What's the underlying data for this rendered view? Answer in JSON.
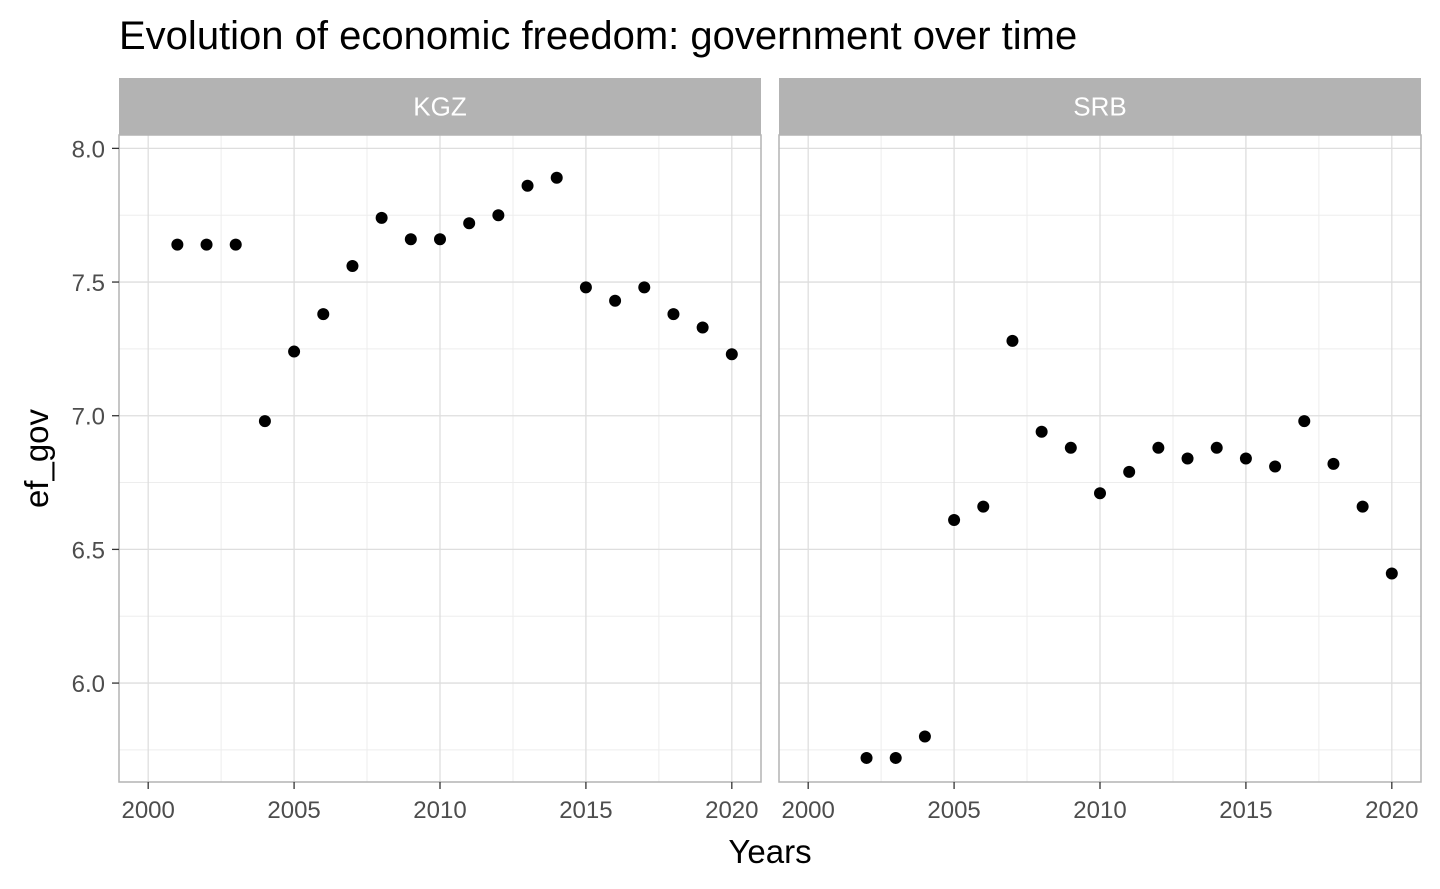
{
  "chart_data": {
    "type": "scatter",
    "title": "Evolution of economic freedom: government over time",
    "xlabel": "Years",
    "ylabel": "ef_gov",
    "xlim": [
      1999,
      2021
    ],
    "ylim": [
      5.63,
      8.05
    ],
    "x_ticks": [
      2000,
      2005,
      2010,
      2015,
      2020
    ],
    "x_tick_labels": [
      "2000",
      "2005",
      "2010",
      "2015",
      "2020"
    ],
    "y_ticks": [
      6.0,
      6.5,
      7.0,
      7.5,
      8.0
    ],
    "y_tick_labels": [
      "6.0",
      "6.5",
      "7.0",
      "7.5",
      "8.0"
    ],
    "grid": true,
    "facets": [
      {
        "name": "KGZ",
        "x": [
          2001,
          2002,
          2003,
          2004,
          2005,
          2006,
          2007,
          2008,
          2009,
          2010,
          2011,
          2012,
          2013,
          2014,
          2015,
          2016,
          2017,
          2018,
          2019,
          2020
        ],
        "y": [
          7.64,
          7.64,
          7.64,
          6.98,
          7.24,
          7.38,
          7.56,
          7.74,
          7.66,
          7.66,
          7.72,
          7.75,
          7.86,
          7.89,
          7.48,
          7.43,
          7.48,
          7.38,
          7.33,
          7.23
        ]
      },
      {
        "name": "SRB",
        "x": [
          2002,
          2003,
          2004,
          2005,
          2006,
          2007,
          2008,
          2009,
          2010,
          2011,
          2012,
          2013,
          2014,
          2015,
          2016,
          2017,
          2018,
          2019,
          2020
        ],
        "y": [
          5.72,
          5.72,
          5.8,
          6.61,
          6.66,
          7.28,
          6.94,
          6.88,
          6.71,
          6.79,
          6.88,
          6.84,
          6.88,
          6.84,
          6.81,
          6.98,
          6.82,
          6.66,
          6.41
        ]
      }
    ],
    "colors": {
      "point": "#000000",
      "strip": "#b3b3b3",
      "strip_text": "#ffffff",
      "panel_border": "#b3b3b3",
      "grid_major": "#dedede",
      "grid_minor": "#ededed",
      "tick_label": "#4d4d4d"
    }
  }
}
